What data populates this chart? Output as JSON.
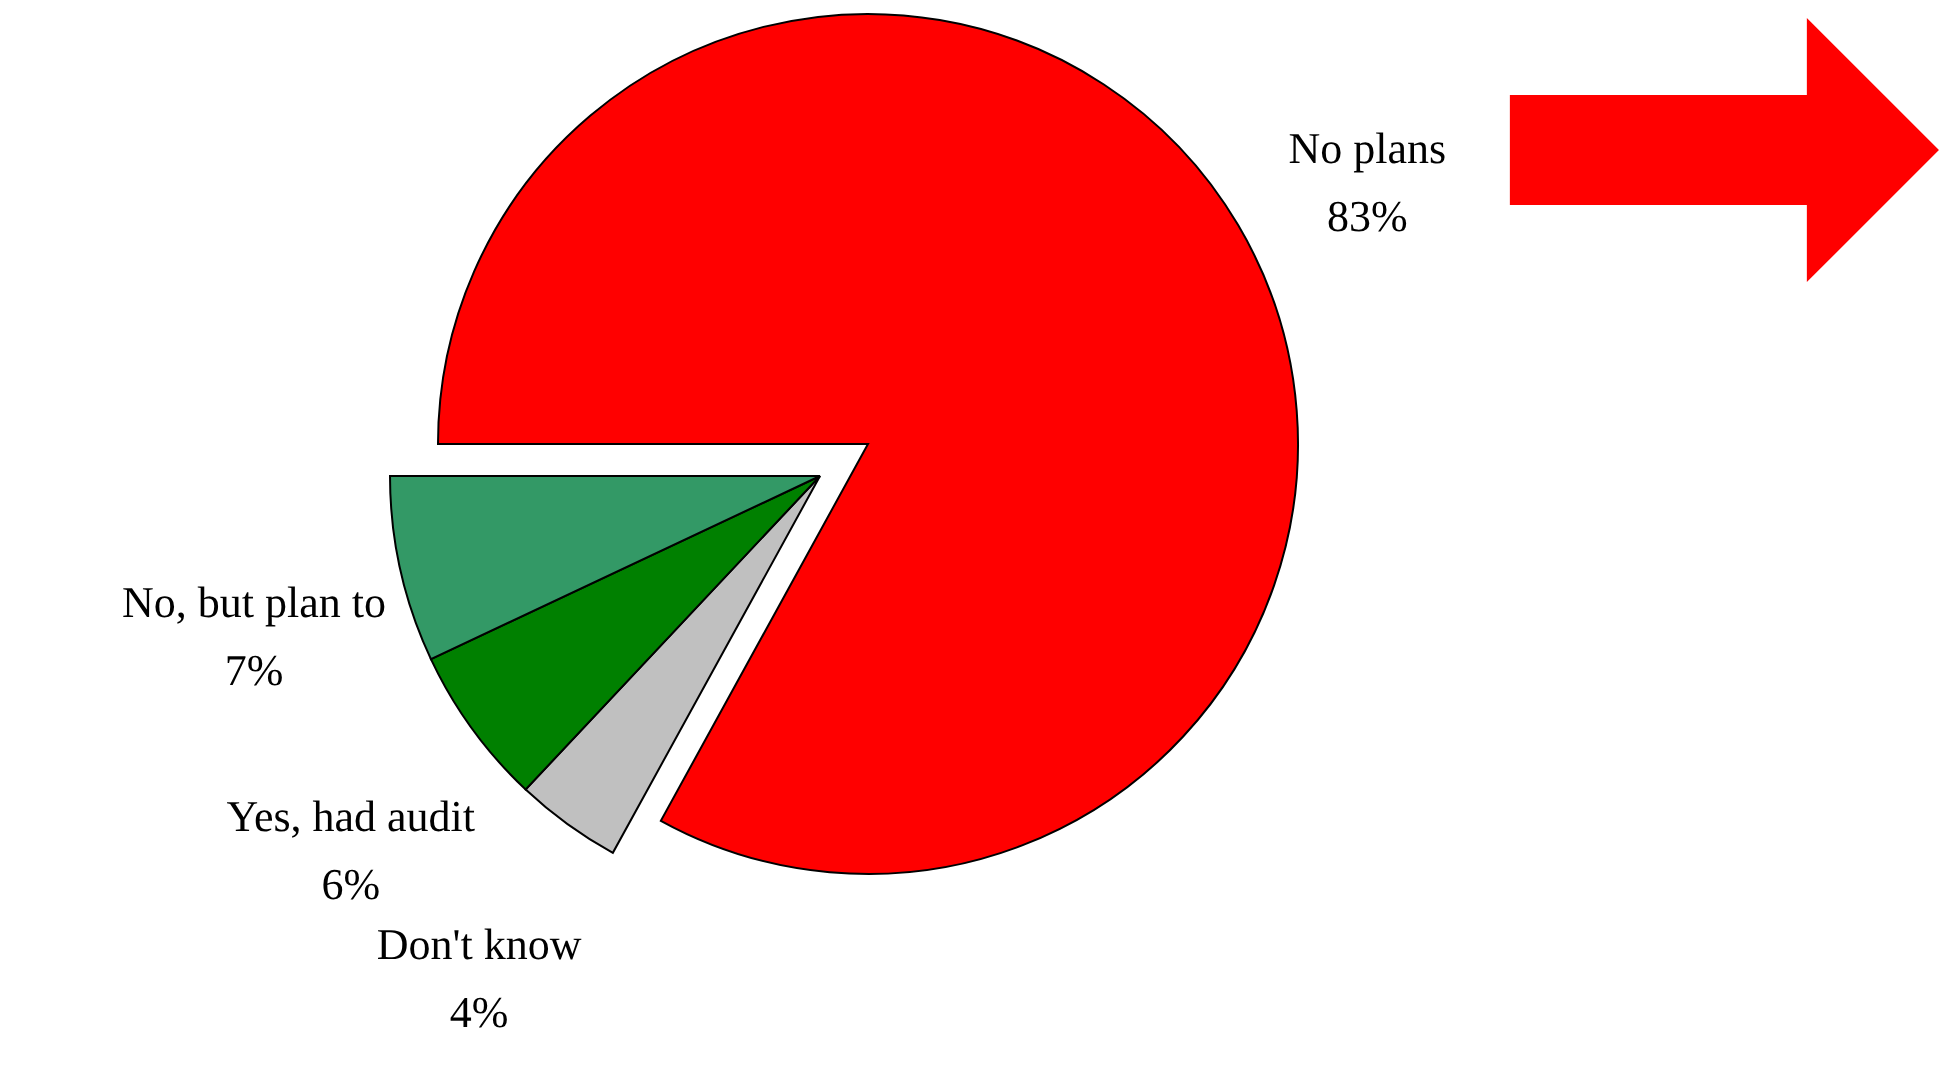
{
  "chart_data": {
    "type": "pie",
    "categories": [
      "No plans",
      "Don't know",
      "Yes, had audit",
      "No, but plan to"
    ],
    "values": [
      83,
      4,
      6,
      7
    ],
    "value_labels": [
      "83%",
      "4%",
      "6%",
      "7%"
    ],
    "colors": [
      "#ff0000",
      "#c0c0c0",
      "#008000",
      "#339966"
    ]
  }
}
